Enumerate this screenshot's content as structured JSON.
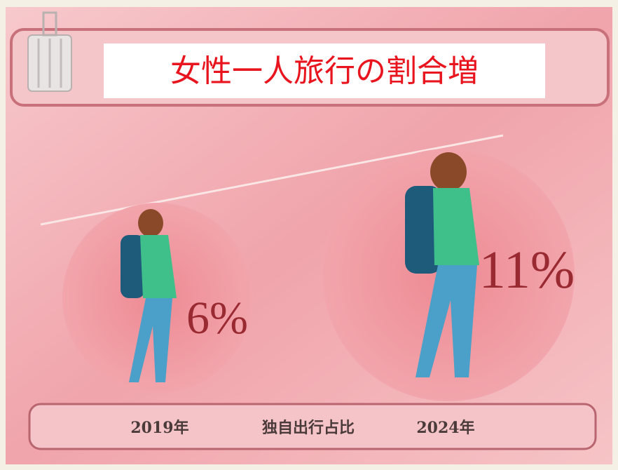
{
  "header": {
    "title": "女性一人旅行の割合増"
  },
  "circles": [
    {
      "label": "6%"
    },
    {
      "label": "11%"
    }
  ],
  "footer": {
    "items": [
      "2019年",
      "独自出行占比",
      "2024年"
    ]
  }
}
